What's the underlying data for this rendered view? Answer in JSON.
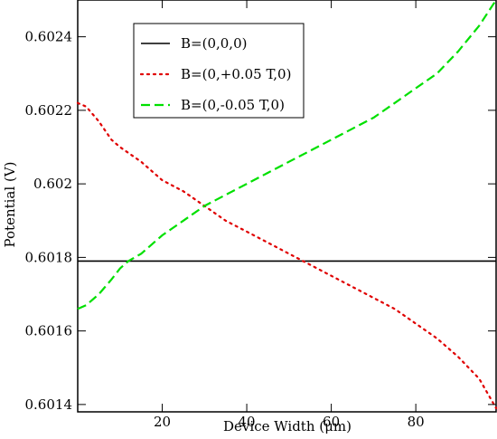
{
  "chart_data": {
    "type": "line",
    "title": "",
    "xlabel": "Device Width (μm)",
    "ylabel": "Potential (V)",
    "xlim": [
      0,
      99
    ],
    "ylim": [
      0.60138,
      0.6025
    ],
    "xticks": [
      20,
      40,
      60,
      80
    ],
    "xtick_labels": [
      "20",
      "40",
      "60",
      "80"
    ],
    "yticks": [
      0.6014,
      0.6016,
      0.6018,
      0.602,
      0.6022,
      0.6024
    ],
    "ytick_labels": [
      "0.6014",
      "0.6016",
      "0.6018",
      "0.602",
      "0.6022",
      "0.6024"
    ],
    "grid": false,
    "legend_position": "top-left",
    "series": [
      {
        "name": "B=(0,0,0)",
        "color": "#000000",
        "style": "solid",
        "x": [
          0,
          20,
          40,
          60,
          80,
          99
        ],
        "y": [
          0.60179,
          0.60179,
          0.60179,
          0.60179,
          0.60179,
          0.60179
        ]
      },
      {
        "name": "B=(0,+0.05 T,0)",
        "color": "#e00000",
        "style": "dotted",
        "x": [
          0,
          2,
          5,
          8,
          10,
          15,
          20,
          25,
          30,
          35,
          40,
          45,
          50,
          55,
          60,
          65,
          70,
          75,
          80,
          85,
          90,
          95,
          99
        ],
        "y": [
          0.60222,
          0.60221,
          0.60217,
          0.60212,
          0.6021,
          0.60206,
          0.60201,
          0.60198,
          0.60194,
          0.6019,
          0.60187,
          0.60184,
          0.60181,
          0.60178,
          0.60175,
          0.60172,
          0.60169,
          0.60166,
          0.60162,
          0.60158,
          0.60153,
          0.60147,
          0.60139
        ]
      },
      {
        "name": "B=(0,-0.05 T,0)",
        "color": "#00e000",
        "style": "dashed",
        "x": [
          0,
          2,
          5,
          8,
          10,
          12,
          15,
          20,
          25,
          30,
          35,
          40,
          45,
          50,
          55,
          60,
          65,
          70,
          75,
          80,
          85,
          90,
          95,
          99
        ],
        "y": [
          0.60166,
          0.60167,
          0.6017,
          0.60174,
          0.60177,
          0.60179,
          0.60181,
          0.60186,
          0.6019,
          0.60194,
          0.60197,
          0.602,
          0.60203,
          0.60206,
          0.60209,
          0.60212,
          0.60215,
          0.60218,
          0.60222,
          0.60226,
          0.6023,
          0.60236,
          0.60243,
          0.6025
        ]
      }
    ]
  }
}
